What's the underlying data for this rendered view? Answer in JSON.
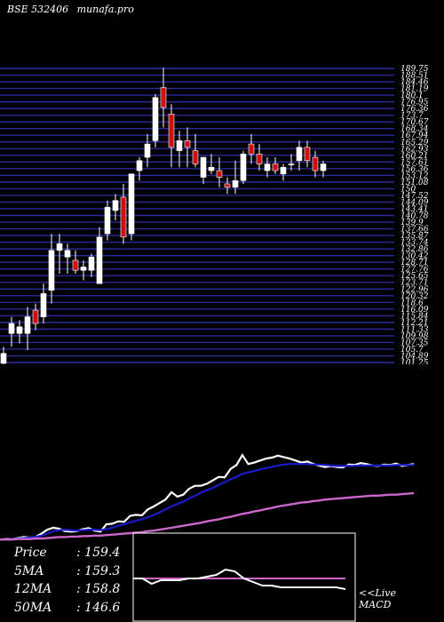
{
  "header": {
    "exchange": "BSE 532406",
    "site": "munafa.pro"
  },
  "colors": {
    "background": "#000000",
    "grid": "#2a2a9a",
    "up_candle": "#ffffff",
    "down_candle": "#cc1111",
    "price_line": "#ffffff",
    "ma12": "#1a1acc",
    "ma50": "#cc66cc",
    "macd_line": "#ffffff",
    "signal_line": "#cc66cc"
  },
  "chart_data": [
    {
      "type": "candlestick",
      "title": "",
      "y_tick_labels": [
        "189.75",
        "188.51",
        "184.46",
        "181.19",
        "180.1",
        "176.95",
        "176.36",
        "173.7",
        "170.67",
        "168.34",
        "167.94",
        "165.29",
        "162.93",
        "160.21",
        "157.61",
        "156.36",
        "153.12",
        "151.08",
        "150",
        "147.52",
        "144.09",
        "143.41",
        "140.78",
        "139.9",
        "137.66",
        "135.87",
        "133.74",
        "132.86",
        "130.42",
        "128.71",
        "127.76",
        "125.65",
        "123.71",
        "122.96",
        "120.32",
        "118.6",
        "116.09",
        "115.84",
        "112.21",
        "111.33",
        "109.98",
        "107.35",
        "105.7",
        "104.89",
        "101.25"
      ],
      "ylim": [
        101.25,
        189.75
      ],
      "candles": [
        {
          "o": 101,
          "h": 106,
          "l": 95,
          "c": 104
        },
        {
          "o": 110,
          "h": 115,
          "l": 106,
          "c": 113
        },
        {
          "o": 110,
          "h": 114,
          "l": 107,
          "c": 112
        },
        {
          "o": 110,
          "h": 118,
          "l": 105,
          "c": 115
        },
        {
          "o": 117,
          "h": 119,
          "l": 111,
          "c": 113
        },
        {
          "o": 115,
          "h": 125,
          "l": 113,
          "c": 122
        },
        {
          "o": 123,
          "h": 140,
          "l": 119,
          "c": 135
        },
        {
          "o": 135,
          "h": 140,
          "l": 128,
          "c": 137
        },
        {
          "o": 133,
          "h": 137,
          "l": 128,
          "c": 135
        },
        {
          "o": 132,
          "h": 135,
          "l": 128,
          "c": 129
        },
        {
          "o": 129,
          "h": 132,
          "l": 126,
          "c": 130
        },
        {
          "o": 129,
          "h": 134,
          "l": 127,
          "c": 133
        },
        {
          "o": 125,
          "h": 142,
          "l": 125,
          "c": 139
        },
        {
          "o": 140,
          "h": 150,
          "l": 138,
          "c": 148
        },
        {
          "o": 147,
          "h": 152,
          "l": 144,
          "c": 150
        },
        {
          "o": 151,
          "h": 155,
          "l": 137,
          "c": 139
        },
        {
          "o": 140,
          "h": 158,
          "l": 138,
          "c": 158
        },
        {
          "o": 159,
          "h": 163,
          "l": 156,
          "c": 162
        },
        {
          "o": 163,
          "h": 170,
          "l": 160,
          "c": 167
        },
        {
          "o": 168,
          "h": 182,
          "l": 166,
          "c": 181
        },
        {
          "o": 184,
          "h": 190,
          "l": 172,
          "c": 178
        },
        {
          "o": 176,
          "h": 179,
          "l": 160,
          "c": 166
        },
        {
          "o": 165,
          "h": 171,
          "l": 160,
          "c": 168
        },
        {
          "o": 168,
          "h": 172,
          "l": 160,
          "c": 166
        },
        {
          "o": 165,
          "h": 170,
          "l": 160,
          "c": 161
        },
        {
          "o": 157,
          "h": 163,
          "l": 155,
          "c": 163
        },
        {
          "o": 159,
          "h": 164,
          "l": 158,
          "c": 160
        },
        {
          "o": 159,
          "h": 163,
          "l": 154,
          "c": 157
        },
        {
          "o": 155,
          "h": 157,
          "l": 152,
          "c": 154
        },
        {
          "o": 154,
          "h": 162,
          "l": 152,
          "c": 156
        },
        {
          "o": 156,
          "h": 165,
          "l": 155,
          "c": 164
        },
        {
          "o": 167,
          "h": 170,
          "l": 161,
          "c": 164
        },
        {
          "o": 164,
          "h": 167,
          "l": 159,
          "c": 161
        },
        {
          "o": 159,
          "h": 163,
          "l": 157,
          "c": 161
        },
        {
          "o": 161,
          "h": 163,
          "l": 158,
          "c": 159
        },
        {
          "o": 158,
          "h": 161,
          "l": 156,
          "c": 160
        },
        {
          "o": 161,
          "h": 164,
          "l": 159,
          "c": 161
        },
        {
          "o": 162,
          "h": 168,
          "l": 159,
          "c": 166
        },
        {
          "o": 166,
          "h": 168,
          "l": 160,
          "c": 162
        },
        {
          "o": 163,
          "h": 165,
          "l": 157,
          "c": 159
        },
        {
          "o": 159,
          "h": 162,
          "l": 157,
          "c": 161
        }
      ]
    },
    {
      "type": "line",
      "title": "",
      "series": [
        {
          "values": [
            5,
            6,
            6,
            8,
            10,
            9,
            10,
            17,
            25,
            29,
            27,
            22,
            21,
            22,
            26,
            28,
            23,
            21,
            36,
            37,
            42,
            41,
            53,
            55,
            54,
            66,
            72,
            79,
            86,
            101,
            92,
            96,
            108,
            114,
            114,
            118,
            125,
            132,
            131,
            148,
            156,
            176,
            158,
            161,
            165,
            169,
            171,
            175,
            172,
            169,
            165,
            161,
            163,
            158,
            155,
            152,
            154,
            152,
            151,
            157,
            156,
            160,
            158,
            155,
            154,
            157,
            156,
            159,
            154,
            156,
            158
          ]
        },
        {
          "values": [
            5,
            5,
            6,
            7,
            8,
            9,
            10,
            13,
            17,
            22,
            24,
            25,
            24,
            23,
            24,
            25,
            25,
            24,
            26,
            29,
            33,
            36,
            40,
            43,
            46,
            50,
            55,
            60,
            66,
            72,
            77,
            82,
            88,
            94,
            100,
            105,
            110,
            116,
            121,
            127,
            132,
            138,
            141,
            144,
            147,
            150,
            152,
            155,
            157,
            158,
            158,
            158,
            158,
            157,
            157,
            156,
            155,
            154,
            154,
            154,
            154,
            155,
            155,
            155,
            155,
            155,
            155,
            156,
            156,
            156,
            156
          ]
        },
        {
          "values": [
            5,
            5,
            5,
            6,
            6,
            6,
            7,
            7,
            8,
            9,
            10,
            10,
            11,
            11,
            12,
            12,
            13,
            13,
            14,
            15,
            16,
            17,
            18,
            19,
            20,
            22,
            23,
            25,
            27,
            29,
            31,
            33,
            35,
            37,
            39,
            42,
            44,
            46,
            49,
            51,
            54,
            57,
            59,
            62,
            64,
            67,
            69,
            72,
            74,
            76,
            78,
            80,
            81,
            83,
            84,
            86,
            87,
            88,
            89,
            90,
            91,
            92,
            93,
            94,
            94,
            95,
            96,
            96,
            97,
            98,
            99
          ]
        }
      ]
    },
    {
      "type": "line",
      "title": "",
      "series": [
        {
          "values": [
            0,
            0,
            -3,
            -1,
            -1,
            -1,
            0,
            0,
            1,
            2,
            5,
            4,
            0,
            -2,
            -4,
            -4,
            -5,
            -5,
            -5,
            -5,
            -5,
            -5,
            -5,
            -6
          ]
        },
        {
          "values": [
            0,
            0,
            0,
            0,
            0,
            0,
            0,
            0,
            0,
            0,
            0,
            0,
            0,
            0,
            0,
            0,
            0,
            0,
            0,
            0,
            0,
            0,
            0,
            0
          ]
        }
      ]
    }
  ],
  "stats": [
    {
      "label": "Price",
      "sep": ":",
      "value": "159.4"
    },
    {
      "label": "5MA",
      "sep": ":",
      "value": "159.3"
    },
    {
      "label": "12MA",
      "sep": ":",
      "value": "158.8"
    },
    {
      "label": "50MA",
      "sep": ":",
      "value": "146.6"
    }
  ],
  "macd_label": [
    "<<Live",
    "MACD"
  ]
}
